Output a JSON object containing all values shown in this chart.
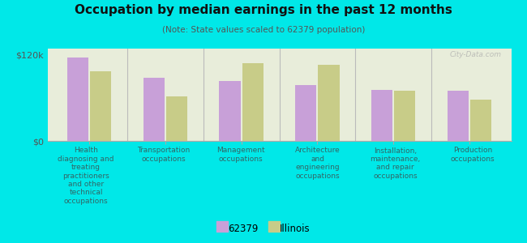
{
  "title": "Occupation by median earnings in the past 12 months",
  "subtitle": "(Note: State values scaled to 62379 population)",
  "background_outer": "#00e8e8",
  "background_inner_top": "#e8edda",
  "background_inner_bottom": "#d8e8d0",
  "categories": [
    "Health\ndiagnosing and\ntreating\npractitioners\nand other\ntechnical\noccupations",
    "Transportation\noccupations",
    "Management\noccupations",
    "Architecture\nand\nengineering\noccupations",
    "Installation,\nmaintenance,\nand repair\noccupations",
    "Production\noccupations"
  ],
  "values_62379": [
    116000,
    88000,
    83000,
    78000,
    71000,
    70000
  ],
  "values_illinois": [
    97000,
    62000,
    108000,
    106000,
    70000,
    57000
  ],
  "color_62379": "#c8a0d8",
  "color_illinois": "#c8cc88",
  "ylim": [
    0,
    128000
  ],
  "ytick_val": 120000,
  "ytick_label": "$120k",
  "y0_label": "$0",
  "legend_labels": [
    "62379",
    "Illinois"
  ],
  "watermark": "City-Data.com"
}
